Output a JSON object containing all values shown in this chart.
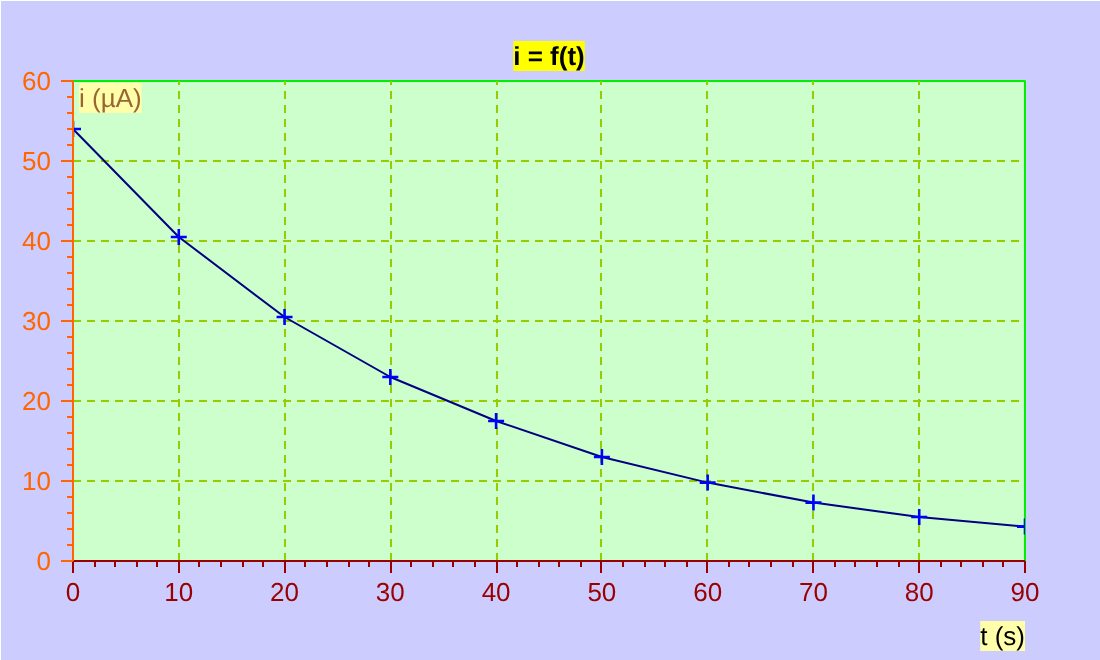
{
  "chart_data": {
    "type": "line",
    "title": "i = f(t)",
    "xlabel": "t (s)",
    "ylabel": "i (µA)",
    "x": [
      0,
      10,
      20,
      30,
      40,
      50,
      60,
      70,
      80,
      90
    ],
    "series": [
      {
        "color": "#000080",
        "values": [
          54,
          40.5,
          30.5,
          23,
          17.5,
          13,
          9.8,
          7.3,
          5.5,
          4.3
        ]
      }
    ],
    "xlim": [
      0,
      90
    ],
    "ylim": [
      0,
      60
    ],
    "xticks": [
      0,
      10,
      20,
      30,
      40,
      50,
      60,
      70,
      80,
      90
    ],
    "yticks": [
      0,
      10,
      20,
      30,
      40,
      50,
      60
    ],
    "grid": true,
    "marker": "cross",
    "line_style": "solid"
  }
}
